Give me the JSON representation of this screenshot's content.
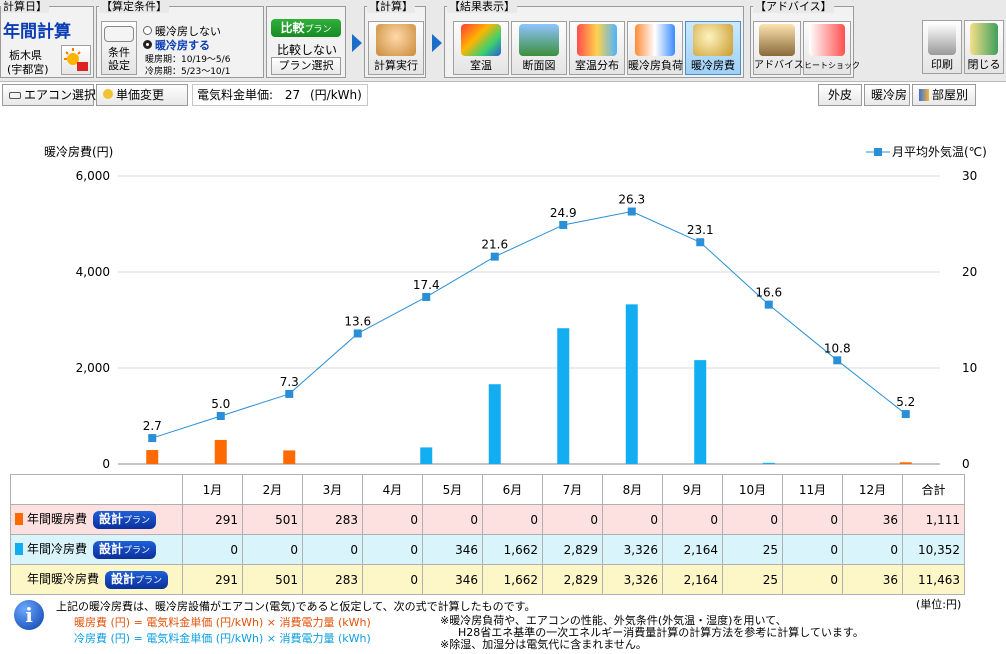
{
  "calc_day": {
    "label": "計算日】",
    "title": "年間計算",
    "pref": "栃木県",
    "city": "(宇都宮)"
  },
  "conditions": {
    "label": "【算定条件】",
    "opt_no_hvac": "暖冷房しない",
    "opt_hvac": "暖冷房する",
    "heat_period": "暖房期：10/19〜5/6",
    "cool_period": "冷房期：5/23〜10/1",
    "cond_btn": "条件設定"
  },
  "compare": {
    "plan_btn": "比較プラン",
    "plan_btn_main": "比較",
    "plan_btn_sub": "プラン",
    "no_compare": "比較しない",
    "plan_select": "プラン選択"
  },
  "calc": {
    "label": "【計算】",
    "run": "計算実行"
  },
  "results": {
    "label": "【結果表示】",
    "items": [
      "室温",
      "断面図",
      "室温分布",
      "暖冷房負荷",
      "暖冷房費"
    ]
  },
  "advice": {
    "label": "【アドバイス】",
    "items": [
      "アドバイス",
      "ヒートショック"
    ]
  },
  "actions": {
    "print": "印刷",
    "close": "閉じる"
  },
  "subbar": {
    "aircon_select": "エアコン選択",
    "price_change": "単価変更",
    "unit_price_label": "電気料金単価:",
    "unit_price_value": "27",
    "unit_price_unit": "(円/kWh)",
    "tabs": [
      "外皮",
      "暖冷房",
      "部屋別"
    ]
  },
  "colors": {
    "heat": "#ff6a00",
    "cool": "#13aef2",
    "temp_line": "#2a8fd6",
    "accent": "#1e6ec8"
  },
  "chart_data": {
    "type": "bar",
    "categories": [
      "1月",
      "2月",
      "3月",
      "4月",
      "5月",
      "6月",
      "7月",
      "8月",
      "9月",
      "10月",
      "11月",
      "12月"
    ],
    "ylabel": "暖冷房費(円)",
    "y2label": "月平均外気温(℃)",
    "ylim": [
      0,
      6000
    ],
    "y2lim": [
      0,
      30
    ],
    "yticks": [
      "0",
      "2,000",
      "4,000",
      "6,000"
    ],
    "y2ticks": [
      "0",
      "10",
      "20",
      "30"
    ],
    "series": [
      {
        "name": "年間暖房費",
        "values": [
          291,
          501,
          283,
          0,
          0,
          0,
          0,
          0,
          0,
          0,
          0,
          36
        ]
      },
      {
        "name": "年間冷房費",
        "values": [
          0,
          0,
          0,
          0,
          346,
          1662,
          2829,
          3326,
          2164,
          25,
          0,
          0
        ]
      }
    ],
    "temp_series": {
      "name": "月平均外気温(℃)",
      "values": [
        2.7,
        5.0,
        7.3,
        13.6,
        17.4,
        21.6,
        24.9,
        26.3,
        23.1,
        16.6,
        10.8,
        5.2
      ],
      "labels": [
        "2.7",
        "5.0",
        "7.3",
        "13.6",
        "17.4",
        "21.6",
        "24.9",
        "26.3",
        "23.1",
        "16.6",
        "10.8",
        "5.2"
      ]
    },
    "legend": "top-right"
  },
  "table": {
    "header": [
      "1月",
      "2月",
      "3月",
      "4月",
      "5月",
      "6月",
      "7月",
      "8月",
      "9月",
      "10月",
      "11月",
      "12月",
      "合計"
    ],
    "rows": [
      {
        "label": "年間暖房費",
        "btn_main": "設計",
        "btn_sub": "プラン",
        "values": [
          "291",
          "501",
          "283",
          "0",
          "0",
          "0",
          "0",
          "0",
          "0",
          "0",
          "0",
          "36",
          "1,111"
        ]
      },
      {
        "label": "年間冷房費",
        "btn_main": "設計",
        "btn_sub": "プラン",
        "values": [
          "0",
          "0",
          "0",
          "0",
          "346",
          "1,662",
          "2,829",
          "3,326",
          "2,164",
          "25",
          "0",
          "0",
          "10,352"
        ]
      },
      {
        "label": "年間暖冷房費",
        "btn_main": "設計",
        "btn_sub": "プラン",
        "values": [
          "291",
          "501",
          "283",
          "0",
          "346",
          "1,662",
          "2,829",
          "3,326",
          "2,164",
          "25",
          "0",
          "36",
          "11,463"
        ]
      }
    ]
  },
  "footnote": {
    "unit": "(単位:円)",
    "line1": "上記の暖冷房費は、暖冷房設備がエアコン(電気)であると仮定して、次の式で計算したものです。",
    "heat_formula": "暖房費 (円) = 電気料金単価 (円/kWh) × 消費電力量 (kWh)",
    "cool_formula": "冷房費 (円) = 電気料金単価 (円/kWh) × 消費電力量 (kWh)",
    "note1": "※暖冷房負荷や、エアコンの性能、外気条件(外気温・湿度)を用いて、",
    "note2": "H28省エネ基準の一次エネルギー消費量計算の計算方法を参考に計算しています。",
    "note3": "※除湿、加湿分は電気代に含まれません。"
  }
}
